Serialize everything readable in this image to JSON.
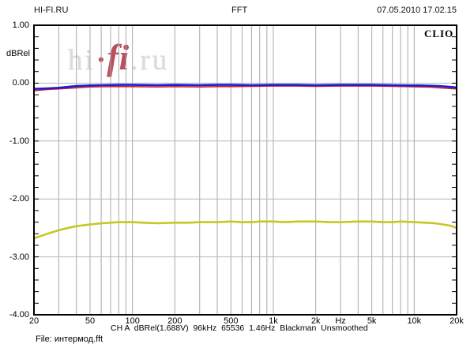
{
  "header": {
    "site": "HI-FI.RU",
    "title": "FFT",
    "datetime": "07.05.2010 17.02.15"
  },
  "brand": "CLIO",
  "watermark": {
    "hi": "hi",
    "dot": "·",
    "fi": "fi",
    "ru": ".ru"
  },
  "footer": {
    "status": "CH A  dBRel(1.688V)  96kHz  65536  1.46Hz  Blackman  Unsmoothed",
    "file": "File: интермод.fft"
  },
  "chart_data": {
    "type": "line",
    "title": "FFT",
    "grid": "on",
    "legend": "none",
    "colors": {
      "vgrid": "#a9a9a9",
      "hgrid": "#b6b6b6",
      "frame": "#000000"
    },
    "x_axis": {
      "scale": "log",
      "unit": "Hz",
      "min": 20,
      "max": 20000,
      "ticks": [
        {
          "f": 20,
          "label": "20"
        },
        {
          "f": 50,
          "label": "50"
        },
        {
          "f": 100,
          "label": "100"
        },
        {
          "f": 200,
          "label": "200"
        },
        {
          "f": 500,
          "label": "500"
        },
        {
          "f": 1000,
          "label": "1k"
        },
        {
          "f": 2000,
          "label": "2k"
        },
        {
          "f": 3000,
          "label": "Hz"
        },
        {
          "f": 5000,
          "label": "5k"
        },
        {
          "f": 10000,
          "label": "10k"
        },
        {
          "f": 20000,
          "label": "20k"
        }
      ],
      "gridlines": [
        30,
        40,
        50,
        60,
        70,
        80,
        90,
        100,
        200,
        300,
        400,
        500,
        600,
        700,
        800,
        900,
        1000,
        2000,
        3000,
        4000,
        5000,
        6000,
        7000,
        8000,
        9000,
        10000
      ]
    },
    "y_axis": {
      "label": "dBRel",
      "min": -4,
      "max": 1,
      "minor_tick_step": 0.2,
      "ticks": [
        {
          "v": 1,
          "label": "1.00"
        },
        {
          "v": 0,
          "label": "0.00"
        },
        {
          "v": -1,
          "label": "-1.00"
        },
        {
          "v": -2,
          "label": "-2.00"
        },
        {
          "v": -3,
          "label": "-3.00"
        },
        {
          "v": -4,
          "label": "-4.00"
        }
      ],
      "gridlines": [
        0,
        -1,
        -2,
        -3
      ]
    },
    "series": [
      {
        "name": "channel-red",
        "color": "#cc2433",
        "width": 1.6,
        "points": [
          [
            20,
            -0.13
          ],
          [
            25,
            -0.11
          ],
          [
            30,
            -0.1
          ],
          [
            40,
            -0.08
          ],
          [
            50,
            -0.065
          ],
          [
            70,
            -0.06
          ],
          [
            100,
            -0.06
          ],
          [
            150,
            -0.065
          ],
          [
            200,
            -0.06
          ],
          [
            300,
            -0.065
          ],
          [
            400,
            -0.06
          ],
          [
            500,
            -0.06
          ],
          [
            700,
            -0.055
          ],
          [
            1000,
            -0.05
          ],
          [
            1500,
            -0.05
          ],
          [
            2000,
            -0.055
          ],
          [
            3000,
            -0.05
          ],
          [
            5000,
            -0.05
          ],
          [
            7000,
            -0.055
          ],
          [
            9000,
            -0.06
          ],
          [
            11000,
            -0.065
          ],
          [
            13000,
            -0.07
          ],
          [
            15000,
            -0.08
          ],
          [
            17000,
            -0.09
          ],
          [
            20000,
            -0.1
          ]
        ]
      },
      {
        "name": "channel-blue",
        "color": "#1b1bd0",
        "width": 2.6,
        "points": [
          [
            20,
            -0.1
          ],
          [
            25,
            -0.09
          ],
          [
            30,
            -0.08
          ],
          [
            40,
            -0.05
          ],
          [
            50,
            -0.04
          ],
          [
            60,
            -0.035
          ],
          [
            80,
            -0.03
          ],
          [
            100,
            -0.03
          ],
          [
            150,
            -0.035
          ],
          [
            200,
            -0.03
          ],
          [
            300,
            -0.035
          ],
          [
            400,
            -0.03
          ],
          [
            500,
            -0.03
          ],
          [
            700,
            -0.035
          ],
          [
            1000,
            -0.03
          ],
          [
            1500,
            -0.03
          ],
          [
            2000,
            -0.035
          ],
          [
            3000,
            -0.03
          ],
          [
            4000,
            -0.03
          ],
          [
            5000,
            -0.03
          ],
          [
            7000,
            -0.035
          ],
          [
            9000,
            -0.04
          ],
          [
            11000,
            -0.04
          ],
          [
            13000,
            -0.045
          ],
          [
            15000,
            -0.05
          ],
          [
            17000,
            -0.06
          ],
          [
            20000,
            -0.075
          ]
        ]
      },
      {
        "name": "intermod-yellow",
        "color": "#c6c724",
        "width": 2.6,
        "points": [
          [
            20,
            -2.68
          ],
          [
            25,
            -2.6
          ],
          [
            30,
            -2.54
          ],
          [
            35,
            -2.5
          ],
          [
            40,
            -2.47
          ],
          [
            50,
            -2.44
          ],
          [
            60,
            -2.42
          ],
          [
            70,
            -2.41
          ],
          [
            80,
            -2.4
          ],
          [
            100,
            -2.4
          ],
          [
            120,
            -2.41
          ],
          [
            150,
            -2.42
          ],
          [
            200,
            -2.41
          ],
          [
            250,
            -2.41
          ],
          [
            300,
            -2.4
          ],
          [
            400,
            -2.4
          ],
          [
            500,
            -2.39
          ],
          [
            600,
            -2.4
          ],
          [
            700,
            -2.4
          ],
          [
            800,
            -2.39
          ],
          [
            1000,
            -2.39
          ],
          [
            1200,
            -2.4
          ],
          [
            1500,
            -2.39
          ],
          [
            2000,
            -2.39
          ],
          [
            2500,
            -2.4
          ],
          [
            3000,
            -2.4
          ],
          [
            4000,
            -2.39
          ],
          [
            5000,
            -2.39
          ],
          [
            6000,
            -2.4
          ],
          [
            7000,
            -2.4
          ],
          [
            8000,
            -2.39
          ],
          [
            10000,
            -2.4
          ],
          [
            12000,
            -2.41
          ],
          [
            14000,
            -2.42
          ],
          [
            16000,
            -2.44
          ],
          [
            18000,
            -2.46
          ],
          [
            20000,
            -2.5
          ]
        ]
      }
    ]
  }
}
